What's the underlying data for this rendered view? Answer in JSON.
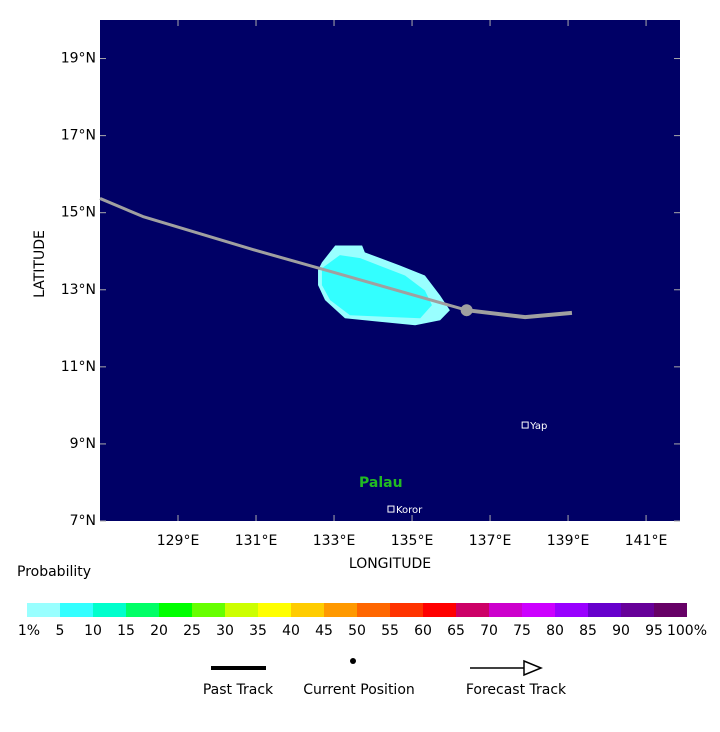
{
  "chart_data": {
    "type": "map",
    "xlabel": "LONGITUDE",
    "ylabel": "LATITUDE",
    "xlim": [
      127,
      141.87
    ],
    "ylim": [
      7,
      20
    ],
    "xticks": [
      {
        "value": 129,
        "label": "129°E"
      },
      {
        "value": 131,
        "label": "131°E"
      },
      {
        "value": 133,
        "label": "133°E"
      },
      {
        "value": 135,
        "label": "135°E"
      },
      {
        "value": 137,
        "label": "137°E"
      },
      {
        "value": 139,
        "label": "139°E"
      },
      {
        "value": 141,
        "label": "141°E"
      }
    ],
    "yticks": [
      {
        "value": 7,
        "label": "7°N"
      },
      {
        "value": 9,
        "label": "9°N"
      },
      {
        "value": 11,
        "label": "11°N"
      },
      {
        "value": 13,
        "label": "13°N"
      },
      {
        "value": 15,
        "label": "15°N"
      },
      {
        "value": 17,
        "label": "17°N"
      },
      {
        "value": 19,
        "label": "19°N"
      }
    ],
    "background": "#000066",
    "areas": [
      {
        "color": "#99ffff",
        "lon": [
          132.59,
          132.69,
          133.03,
          133.72,
          133.79,
          134.69,
          135.33,
          135.72,
          135.97,
          135.72,
          135.08,
          133.28,
          132.77,
          132.59
        ],
        "lat": [
          13.51,
          13.71,
          14.15,
          14.15,
          13.97,
          13.63,
          13.37,
          12.85,
          12.47,
          12.21,
          12.08,
          12.26,
          12.73,
          13.12
        ]
      },
      {
        "color": "#33ffff",
        "lon": [
          132.69,
          133.15,
          133.67,
          134.82,
          135.33,
          135.51,
          135.21,
          133.41,
          132.9,
          132.69
        ],
        "lat": [
          13.56,
          13.9,
          13.82,
          13.37,
          12.98,
          12.6,
          12.26,
          12.34,
          12.73,
          13.12
        ]
      }
    ],
    "past_track": {
      "name": "Past Track",
      "color": "#a0a0a0",
      "lon": [
        127,
        128.1,
        131,
        133,
        136.4
      ],
      "lat": [
        15.37,
        14.9,
        14.02,
        13.45,
        12.47
      ]
    },
    "current_position": {
      "name": "Current Position",
      "color": "#a0a0a0",
      "lon": 136.4,
      "lat": 12.47
    },
    "forecast_track": {
      "name": "Forecast Track",
      "color": "#a0a0a0",
      "lon": [
        136.4,
        137.9,
        139.1
      ],
      "lat": [
        12.47,
        12.29,
        12.4
      ]
    },
    "places": [
      {
        "name": "Yap",
        "lon": 137.9,
        "lat": 9.49,
        "color": "#ffffff"
      },
      {
        "name": "Koror",
        "lon": 134.46,
        "lat": 7.31,
        "color": "#ffffff"
      },
      {
        "name": "Palau",
        "lon": 134.2,
        "lat": 7.98,
        "color": "#22bb22"
      }
    ],
    "colorbar": {
      "title": "Probability",
      "ticks": [
        {
          "value": 1,
          "label": "1%"
        },
        5,
        10,
        15,
        20,
        25,
        30,
        35,
        40,
        45,
        50,
        55,
        60,
        65,
        70,
        75,
        80,
        85,
        90,
        95,
        {
          "value": 100,
          "label": "100%"
        }
      ],
      "colors": [
        "#99ffff",
        "#33ffff",
        "#00ffcc",
        "#00ff66",
        "#00ff00",
        "#66ff00",
        "#ccff00",
        "#ffff00",
        "#ffcc00",
        "#ff9900",
        "#ff6600",
        "#ff3300",
        "#ff0000",
        "#cc0066",
        "#cc00cc",
        "#cc00ff",
        "#9900ff",
        "#6600cc",
        "#660099",
        "#660066"
      ]
    }
  }
}
